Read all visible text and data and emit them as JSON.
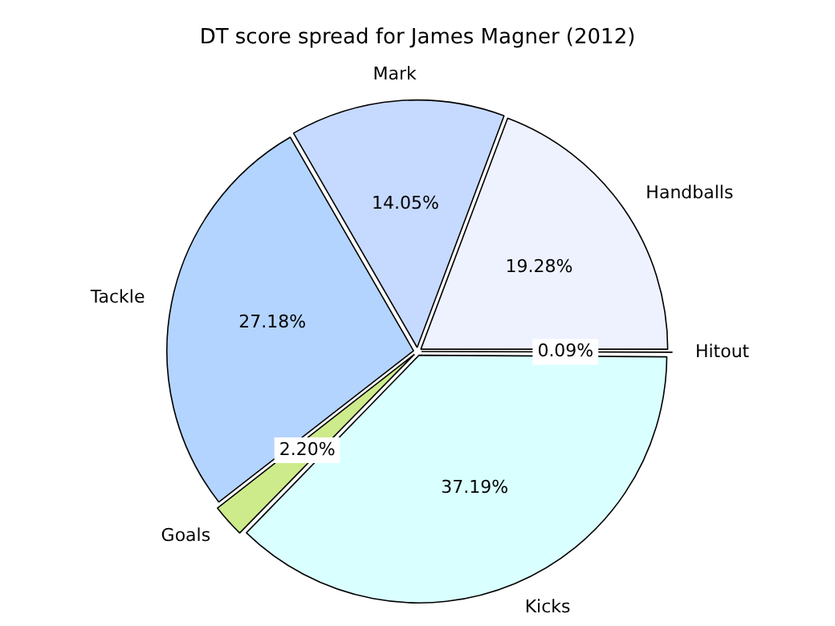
{
  "chart_data": {
    "type": "pie",
    "title": "DT score spread for James Magner (2012)",
    "categories": [
      "Hitout",
      "Kicks",
      "Goals",
      "Tackle",
      "Mark",
      "Handballs"
    ],
    "values": [
      0.09,
      37.19,
      2.2,
      27.18,
      14.05,
      19.28
    ],
    "colors": [
      "#ffffff",
      "#d9ffff",
      "#cdeb8b",
      "#b3d4ff",
      "#c6d9ff",
      "#eef2ff"
    ],
    "value_labels": [
      "0.09%",
      "37.19%",
      "2.20%",
      "27.18%",
      "14.05%",
      "19.28%"
    ],
    "legend": false
  }
}
